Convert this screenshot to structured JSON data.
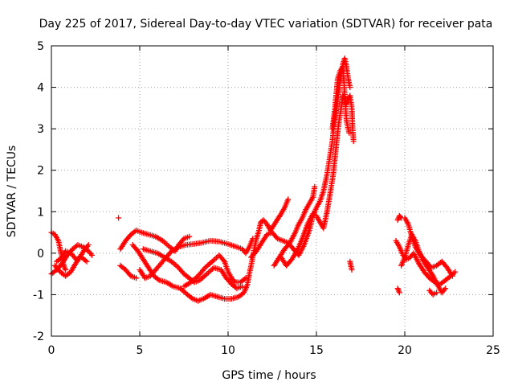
{
  "chart_data": {
    "type": "scatter",
    "title": "Day 225 of 2017, Sidereal Day-to-day VTEC variation (SDTVAR) for receiver pata",
    "xlabel": "GPS time / hours",
    "ylabel": "SDTVAR / TECUs",
    "xlim": [
      0,
      25
    ],
    "ylim": [
      -2,
      5
    ],
    "xticks": [
      "0",
      "5",
      "10",
      "15",
      "20",
      "25"
    ],
    "yticks": [
      "-2",
      "-1",
      "0",
      "1",
      "2",
      "3",
      "4",
      "5"
    ],
    "grid": true,
    "marker": "+",
    "color": "#ff0000",
    "series": [
      {
        "name": "SDTVAR",
        "tracks": [
          [
            [
              0.0,
              0.5
            ],
            [
              0.2,
              0.45
            ],
            [
              0.4,
              0.3
            ],
            [
              0.5,
              0.1
            ],
            [
              0.6,
              -0.1
            ],
            [
              0.7,
              -0.3
            ],
            [
              0.8,
              -0.4
            ]
          ],
          [
            [
              0.0,
              -0.5
            ],
            [
              0.3,
              -0.4
            ],
            [
              0.6,
              -0.25
            ],
            [
              0.9,
              -0.05
            ],
            [
              1.2,
              0.1
            ],
            [
              1.5,
              0.2
            ],
            [
              1.8,
              0.15
            ],
            [
              2.1,
              0.05
            ],
            [
              2.3,
              -0.05
            ]
          ],
          [
            [
              0.2,
              -0.3
            ],
            [
              0.5,
              -0.45
            ],
            [
              0.8,
              -0.55
            ],
            [
              1.1,
              -0.45
            ],
            [
              1.3,
              -0.3
            ],
            [
              1.6,
              -0.1
            ],
            [
              1.9,
              0.1
            ],
            [
              2.1,
              0.2
            ]
          ],
          [
            [
              0.3,
              -0.2
            ],
            [
              0.6,
              -0.1
            ],
            [
              0.8,
              0.05
            ],
            [
              1.1,
              0.0
            ],
            [
              1.4,
              -0.15
            ],
            [
              1.7,
              -0.1
            ],
            [
              2.0,
              -0.2
            ]
          ],
          [
            [
              3.8,
              0.85
            ]
          ],
          [
            [
              3.9,
              -0.3
            ],
            [
              4.2,
              -0.4
            ],
            [
              4.5,
              -0.55
            ],
            [
              4.8,
              -0.6
            ]
          ],
          [
            [
              3.9,
              0.1
            ],
            [
              4.2,
              0.3
            ],
            [
              4.5,
              0.45
            ],
            [
              4.8,
              0.55
            ],
            [
              5.1,
              0.5
            ],
            [
              5.5,
              0.45
            ],
            [
              5.9,
              0.4
            ],
            [
              6.3,
              0.3
            ],
            [
              6.7,
              0.15
            ],
            [
              7.0,
              0.05
            ],
            [
              7.2,
              0.2
            ],
            [
              7.5,
              0.35
            ],
            [
              7.8,
              0.4
            ]
          ],
          [
            [
              4.6,
              0.2
            ],
            [
              4.9,
              0.05
            ],
            [
              5.2,
              -0.15
            ],
            [
              5.5,
              -0.35
            ],
            [
              5.8,
              -0.55
            ],
            [
              6.1,
              -0.65
            ],
            [
              6.5,
              -0.7
            ],
            [
              6.9,
              -0.8
            ],
            [
              7.3,
              -0.85
            ],
            [
              7.7,
              -1.0
            ],
            [
              8.0,
              -1.1
            ],
            [
              8.3,
              -1.15
            ],
            [
              8.6,
              -1.1
            ],
            [
              9.0,
              -1.0
            ],
            [
              9.4,
              -1.05
            ],
            [
              9.8,
              -1.1
            ],
            [
              10.2,
              -1.1
            ],
            [
              10.6,
              -1.05
            ],
            [
              10.9,
              -0.95
            ],
            [
              11.1,
              -0.75
            ],
            [
              11.2,
              -0.5
            ],
            [
              11.35,
              -0.2
            ],
            [
              11.5,
              0.15
            ],
            [
              11.6,
              0.35
            ],
            [
              11.75,
              0.55
            ],
            [
              11.85,
              0.75
            ],
            [
              12.0,
              0.8
            ],
            [
              12.2,
              0.7
            ],
            [
              12.4,
              0.55
            ],
            [
              12.7,
              0.75
            ],
            [
              13.0,
              0.95
            ],
            [
              13.2,
              1.1
            ],
            [
              13.4,
              1.3
            ]
          ],
          [
            [
              5.0,
              -0.4
            ],
            [
              5.3,
              -0.6
            ],
            [
              5.6,
              -0.55
            ],
            [
              6.0,
              -0.35
            ],
            [
              6.4,
              -0.15
            ],
            [
              6.8,
              0.05
            ],
            [
              7.2,
              0.15
            ],
            [
              7.6,
              0.2
            ],
            [
              8.0,
              0.22
            ],
            [
              8.5,
              0.25
            ],
            [
              9.0,
              0.3
            ],
            [
              9.5,
              0.28
            ],
            [
              10.0,
              0.22
            ],
            [
              10.5,
              0.15
            ],
            [
              10.8,
              0.1
            ],
            [
              11.0,
              0.0
            ],
            [
              11.2,
              0.15
            ],
            [
              11.4,
              0.35
            ]
          ],
          [
            [
              5.2,
              0.1
            ],
            [
              5.6,
              0.05
            ],
            [
              6.0,
              0.0
            ],
            [
              6.4,
              -0.1
            ],
            [
              6.8,
              -0.2
            ],
            [
              7.2,
              -0.35
            ],
            [
              7.5,
              -0.5
            ],
            [
              7.8,
              -0.6
            ],
            [
              8.1,
              -0.7
            ],
            [
              8.4,
              -0.65
            ],
            [
              8.8,
              -0.5
            ],
            [
              9.2,
              -0.35
            ],
            [
              9.6,
              -0.4
            ],
            [
              9.9,
              -0.6
            ],
            [
              10.2,
              -0.75
            ],
            [
              10.5,
              -0.85
            ],
            [
              10.8,
              -0.8
            ]
          ],
          [
            [
              7.5,
              -0.8
            ],
            [
              7.9,
              -0.7
            ],
            [
              8.3,
              -0.55
            ],
            [
              8.7,
              -0.35
            ],
            [
              9.1,
              -0.2
            ],
            [
              9.5,
              -0.05
            ],
            [
              9.8,
              -0.2
            ],
            [
              10.0,
              -0.45
            ],
            [
              10.2,
              -0.6
            ],
            [
              10.4,
              -0.7
            ],
            [
              10.7,
              -0.7
            ],
            [
              11.0,
              -0.6
            ]
          ],
          [
            [
              11.3,
              -0.1
            ],
            [
              11.6,
              0.05
            ],
            [
              11.9,
              0.25
            ],
            [
              12.2,
              0.45
            ],
            [
              12.5,
              0.5
            ],
            [
              12.8,
              0.35
            ],
            [
              13.1,
              0.3
            ],
            [
              13.4,
              0.25
            ],
            [
              13.7,
              0.1
            ],
            [
              14.0,
              -0.05
            ],
            [
              14.3,
              0.2
            ],
            [
              14.6,
              0.55
            ],
            [
              14.8,
              0.9
            ],
            [
              15.0,
              1.1
            ],
            [
              15.2,
              1.25
            ],
            [
              15.4,
              1.5
            ],
            [
              15.6,
              1.9
            ],
            [
              15.75,
              2.3
            ],
            [
              15.9,
              2.7
            ],
            [
              16.0,
              3.1
            ],
            [
              16.1,
              3.4
            ],
            [
              16.2,
              3.7
            ],
            [
              16.3,
              4.0
            ],
            [
              16.4,
              4.3
            ],
            [
              16.5,
              4.55
            ],
            [
              16.6,
              4.7
            ],
            [
              16.7,
              4.5
            ],
            [
              16.8,
              4.2
            ],
            [
              16.9,
              4.0
            ]
          ],
          [
            [
              12.6,
              -0.3
            ],
            [
              12.9,
              -0.1
            ],
            [
              13.2,
              0.1
            ],
            [
              13.5,
              0.25
            ],
            [
              13.8,
              0.5
            ],
            [
              14.0,
              0.7
            ],
            [
              14.2,
              0.85
            ],
            [
              14.4,
              1.05
            ],
            [
              14.6,
              1.2
            ],
            [
              14.8,
              1.35
            ],
            [
              14.9,
              1.6
            ]
          ],
          [
            [
              13.0,
              -0.1
            ],
            [
              13.3,
              -0.3
            ],
            [
              13.6,
              -0.15
            ],
            [
              13.9,
              0.05
            ],
            [
              14.2,
              0.35
            ],
            [
              14.5,
              0.7
            ],
            [
              14.8,
              0.95
            ],
            [
              15.0,
              0.9
            ],
            [
              15.2,
              0.75
            ],
            [
              15.4,
              0.6
            ],
            [
              15.6,
              1.0
            ],
            [
              15.8,
              1.5
            ],
            [
              15.95,
              1.9
            ],
            [
              16.1,
              2.5
            ],
            [
              16.25,
              3.1
            ],
            [
              16.4,
              3.5
            ],
            [
              16.5,
              3.8
            ],
            [
              16.6,
              3.7
            ],
            [
              16.7,
              3.6
            ],
            [
              16.8,
              3.7
            ],
            [
              16.9,
              3.8
            ],
            [
              17.0,
              3.5
            ],
            [
              17.05,
              3.0
            ],
            [
              17.1,
              2.7
            ]
          ],
          [
            [
              15.9,
              3.0
            ],
            [
              16.05,
              3.5
            ],
            [
              16.2,
              4.2
            ],
            [
              16.35,
              4.4
            ],
            [
              16.5,
              4.5
            ],
            [
              16.7,
              3.2
            ],
            [
              16.85,
              2.9
            ]
          ],
          [
            [
              16.9,
              -0.2
            ],
            [
              17.0,
              -0.4
            ]
          ],
          [
            [
              19.6,
              0.8
            ],
            [
              19.7,
              0.9
            ],
            [
              19.8,
              0.85
            ]
          ],
          [
            [
              19.6,
              -0.85
            ],
            [
              19.7,
              -0.95
            ]
          ],
          [
            [
              19.5,
              0.3
            ],
            [
              19.7,
              0.15
            ],
            [
              19.9,
              -0.05
            ],
            [
              20.1,
              -0.15
            ],
            [
              20.3,
              -0.1
            ],
            [
              20.5,
              0.0
            ],
            [
              20.8,
              -0.25
            ],
            [
              21.1,
              -0.45
            ],
            [
              21.4,
              -0.6
            ],
            [
              21.7,
              -0.7
            ],
            [
              22.0,
              -0.75
            ],
            [
              22.3,
              -0.65
            ],
            [
              22.6,
              -0.55
            ],
            [
              22.85,
              -0.45
            ]
          ],
          [
            [
              19.8,
              -0.3
            ],
            [
              20.0,
              -0.1
            ],
            [
              20.2,
              0.2
            ],
            [
              20.4,
              0.45
            ],
            [
              20.6,
              0.3
            ],
            [
              20.8,
              0.05
            ],
            [
              21.0,
              -0.15
            ],
            [
              21.3,
              -0.35
            ],
            [
              21.6,
              -0.55
            ],
            [
              21.9,
              -0.8
            ],
            [
              22.1,
              -0.95
            ],
            [
              22.3,
              -0.85
            ]
          ],
          [
            [
              20.0,
              0.85
            ],
            [
              20.2,
              0.7
            ],
            [
              20.4,
              0.4
            ],
            [
              20.6,
              0.15
            ],
            [
              20.9,
              -0.05
            ],
            [
              21.2,
              -0.2
            ],
            [
              21.5,
              -0.35
            ],
            [
              21.8,
              -0.3
            ],
            [
              22.1,
              -0.2
            ],
            [
              22.4,
              -0.35
            ],
            [
              22.7,
              -0.55
            ]
          ],
          [
            [
              21.4,
              -0.9
            ],
            [
              21.6,
              -1.0
            ],
            [
              21.8,
              -0.95
            ]
          ]
        ]
      }
    ]
  }
}
